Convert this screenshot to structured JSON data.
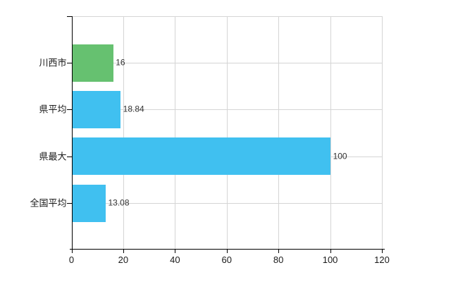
{
  "chart_data": {
    "type": "bar",
    "orientation": "horizontal",
    "title": "",
    "categories": [
      "川西市",
      "県平均",
      "県最大",
      "全国平均"
    ],
    "values": [
      16,
      18.84,
      100,
      13.08
    ],
    "value_labels": [
      "16",
      "18.84",
      "100",
      "13.08"
    ],
    "series_colors": [
      "#66c170",
      "#40c0f0",
      "#40c0f0",
      "#40c0f0"
    ],
    "xlim": [
      0,
      120
    ],
    "x_ticks": [
      0,
      20,
      40,
      60,
      80,
      100,
      120
    ],
    "grid": true,
    "legend": false
  },
  "colors": {
    "highlight_bar": "#66c170",
    "default_bar": "#40c0f0",
    "gridline": "#d5d5d5",
    "axis": "#000000",
    "tick_label": "#1a1a1a",
    "value_label": "#333333",
    "background": "#ffffff"
  }
}
